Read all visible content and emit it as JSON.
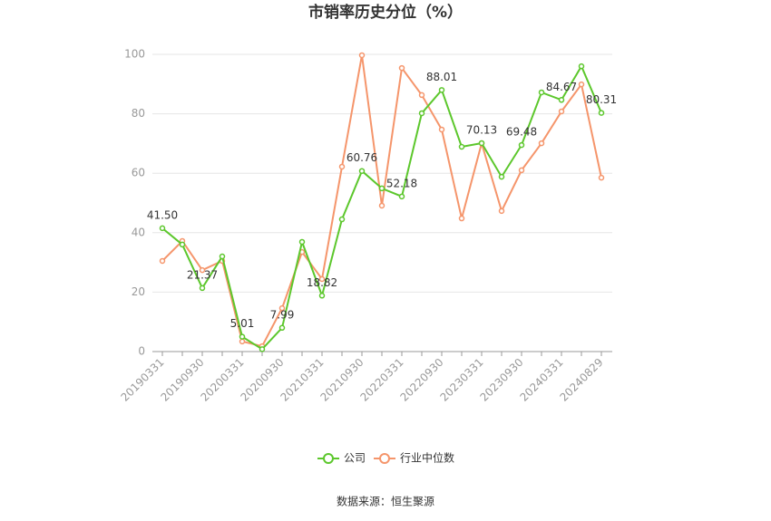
{
  "chart_data": {
    "type": "line",
    "title": "市销率历史分位（%）",
    "categories": [
      "20190331",
      null,
      "20190930",
      null,
      "20200331",
      null,
      "20200930",
      null,
      "20210331",
      null,
      "20210930",
      null,
      "20220331",
      null,
      "20220930",
      null,
      "20230331",
      null,
      "20230930",
      null,
      "20240331",
      null,
      "20240829"
    ],
    "series": [
      {
        "name": "公司",
        "color": "#5cc72c",
        "values": [
          41.5,
          36.0,
          21.37,
          32.0,
          5.01,
          0.8,
          7.99,
          36.9,
          18.82,
          44.5,
          60.76,
          54.9,
          52.18,
          80.2,
          88.01,
          68.9,
          70.13,
          58.8,
          69.48,
          87.2,
          84.67,
          96.0,
          80.31
        ],
        "value_labels": [
          "41.50",
          null,
          "21.37",
          null,
          "5.01",
          null,
          "7.99",
          null,
          "18.82",
          null,
          "60.76",
          null,
          "52.18",
          null,
          "88.01",
          null,
          "70.13",
          null,
          "69.48",
          null,
          "84.67",
          null,
          "80.31"
        ]
      },
      {
        "name": "行业中位数",
        "color": "#f5956b",
        "values": [
          30.5,
          37.2,
          27.4,
          30.5,
          3.4,
          1.8,
          14.6,
          33.5,
          24.4,
          62.2,
          99.7,
          49.1,
          95.4,
          86.3,
          74.7,
          44.8,
          70.1,
          47.3,
          61.0,
          70.1,
          80.8,
          89.9,
          58.5
        ]
      }
    ],
    "ylim": [
      0,
      100
    ],
    "yticks": [
      0,
      20,
      40,
      60,
      80,
      100
    ],
    "grid": true,
    "legend": "bottom",
    "source": "数据来源：恒生聚源"
  }
}
